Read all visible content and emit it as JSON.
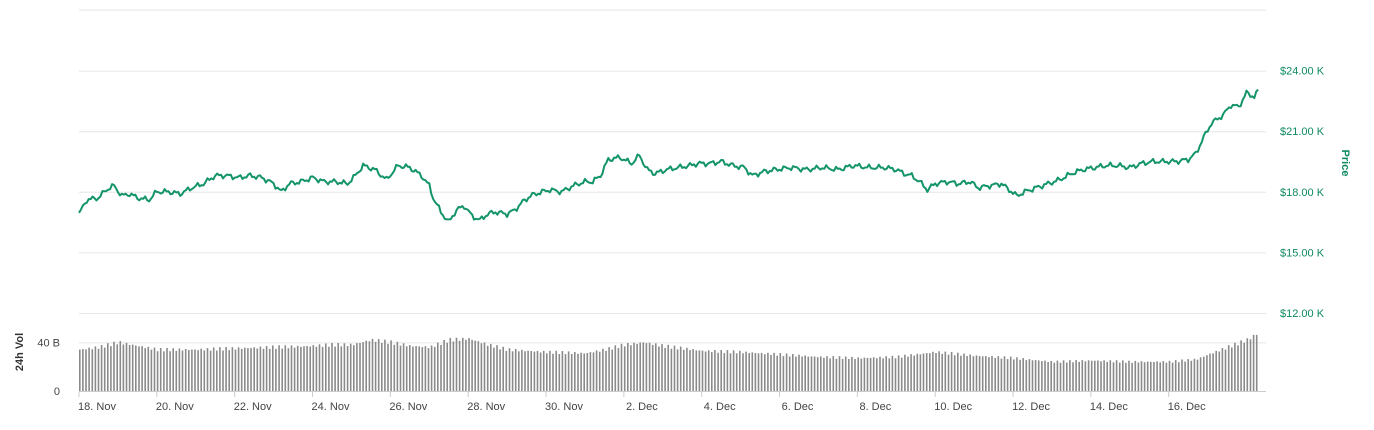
{
  "chart_data": {
    "type": "line",
    "title": "",
    "price_axis": {
      "title": "Price",
      "ticks": [
        {
          "value": 12000,
          "label": "$12.00 K"
        },
        {
          "value": 15000,
          "label": "$15.00 K"
        },
        {
          "value": 18000,
          "label": "$18.00 K"
        },
        {
          "value": 21000,
          "label": "$21.00 K"
        },
        {
          "value": 24000,
          "label": "$24.00 K"
        }
      ],
      "range": [
        12000,
        27000
      ]
    },
    "volume_axis": {
      "title": "24h Vol",
      "ticks": [
        {
          "value": 0,
          "label": "0"
        },
        {
          "value": 40,
          "label": "40 B"
        }
      ],
      "range": [
        0,
        60
      ]
    },
    "x_axis": {
      "range": [
        0,
        30.5
      ],
      "ticks": [
        {
          "day": 0,
          "label": "18. Nov"
        },
        {
          "day": 2,
          "label": "20. Nov"
        },
        {
          "day": 4,
          "label": "22. Nov"
        },
        {
          "day": 6,
          "label": "24. Nov"
        },
        {
          "day": 8,
          "label": "26. Nov"
        },
        {
          "day": 10,
          "label": "28. Nov"
        },
        {
          "day": 12,
          "label": "30. Nov"
        },
        {
          "day": 14,
          "label": "2. Dec"
        },
        {
          "day": 16,
          "label": "4. Dec"
        },
        {
          "day": 18,
          "label": "6. Dec"
        },
        {
          "day": 20,
          "label": "8. Dec"
        },
        {
          "day": 22,
          "label": "10. Dec"
        },
        {
          "day": 24,
          "label": "12. Dec"
        },
        {
          "day": 26,
          "label": "14. Dec"
        },
        {
          "day": 28,
          "label": "16. Dec"
        }
      ]
    },
    "series": [
      {
        "kind": "price",
        "color": "#14946b",
        "points": [
          [
            0,
            16900
          ],
          [
            0.2,
            17600
          ],
          [
            0.5,
            17700
          ],
          [
            0.7,
            18100
          ],
          [
            0.9,
            18300
          ],
          [
            1.1,
            17800
          ],
          [
            1.3,
            17900
          ],
          [
            1.5,
            17700
          ],
          [
            1.8,
            17600
          ],
          [
            2.0,
            18000
          ],
          [
            2.3,
            18000
          ],
          [
            2.6,
            17900
          ],
          [
            2.9,
            18200
          ],
          [
            3.2,
            18400
          ],
          [
            3.5,
            18800
          ],
          [
            3.8,
            18800
          ],
          [
            4.1,
            18700
          ],
          [
            4.4,
            18800
          ],
          [
            4.7,
            18700
          ],
          [
            5.0,
            18400
          ],
          [
            5.2,
            18000
          ],
          [
            5.4,
            18400
          ],
          [
            5.7,
            18500
          ],
          [
            6.0,
            18700
          ],
          [
            6.3,
            18500
          ],
          [
            6.6,
            18500
          ],
          [
            6.9,
            18400
          ],
          [
            7.1,
            18800
          ],
          [
            7.3,
            19300
          ],
          [
            7.6,
            19100
          ],
          [
            7.9,
            18600
          ],
          [
            8.2,
            19300
          ],
          [
            8.5,
            19200
          ],
          [
            8.8,
            18800
          ],
          [
            9.0,
            18300
          ],
          [
            9.1,
            17700
          ],
          [
            9.3,
            17000
          ],
          [
            9.5,
            16500
          ],
          [
            9.7,
            17100
          ],
          [
            9.9,
            17300
          ],
          [
            10.1,
            16800
          ],
          [
            10.3,
            16600
          ],
          [
            10.5,
            16900
          ],
          [
            10.7,
            17000
          ],
          [
            11.0,
            16900
          ],
          [
            11.2,
            17100
          ],
          [
            11.4,
            17500
          ],
          [
            11.6,
            17800
          ],
          [
            11.9,
            18000
          ],
          [
            12.1,
            18100
          ],
          [
            12.4,
            18000
          ],
          [
            12.7,
            18300
          ],
          [
            13.0,
            18500
          ],
          [
            13.2,
            18500
          ],
          [
            13.4,
            18800
          ],
          [
            13.6,
            19600
          ],
          [
            13.9,
            19700
          ],
          [
            14.2,
            19400
          ],
          [
            14.4,
            19800
          ],
          [
            14.6,
            19100
          ],
          [
            14.8,
            18900
          ],
          [
            15.1,
            19100
          ],
          [
            15.4,
            19200
          ],
          [
            15.7,
            19300
          ],
          [
            15.9,
            19400
          ],
          [
            16.2,
            19400
          ],
          [
            16.5,
            19500
          ],
          [
            16.8,
            19300
          ],
          [
            17.1,
            19200
          ],
          [
            17.3,
            18800
          ],
          [
            17.6,
            19000
          ],
          [
            17.9,
            19100
          ],
          [
            18.3,
            19200
          ],
          [
            18.7,
            19100
          ],
          [
            19.1,
            19200
          ],
          [
            19.5,
            19100
          ],
          [
            19.9,
            19300
          ],
          [
            20.3,
            19200
          ],
          [
            20.7,
            19200
          ],
          [
            21.0,
            19100
          ],
          [
            21.2,
            18900
          ],
          [
            21.4,
            18800
          ],
          [
            21.6,
            18500
          ],
          [
            21.8,
            18100
          ],
          [
            22.0,
            18400
          ],
          [
            22.3,
            18500
          ],
          [
            22.6,
            18400
          ],
          [
            22.9,
            18500
          ],
          [
            23.1,
            18200
          ],
          [
            23.4,
            18300
          ],
          [
            23.7,
            18400
          ],
          [
            23.9,
            18100
          ],
          [
            24.1,
            17800
          ],
          [
            24.3,
            18000
          ],
          [
            24.6,
            18200
          ],
          [
            24.9,
            18400
          ],
          [
            25.2,
            18600
          ],
          [
            25.5,
            18900
          ],
          [
            25.8,
            19100
          ],
          [
            26.1,
            19200
          ],
          [
            26.4,
            19300
          ],
          [
            26.7,
            19300
          ],
          [
            27.0,
            19200
          ],
          [
            27.3,
            19400
          ],
          [
            27.6,
            19500
          ],
          [
            27.9,
            19500
          ],
          [
            28.2,
            19500
          ],
          [
            28.5,
            19600
          ],
          [
            28.7,
            19900
          ],
          [
            28.9,
            20700
          ],
          [
            29.1,
            21400
          ],
          [
            29.4,
            21800
          ],
          [
            29.6,
            22300
          ],
          [
            29.8,
            22200
          ],
          [
            30.0,
            22900
          ],
          [
            30.2,
            22700
          ],
          [
            30.3,
            23000
          ]
        ]
      },
      {
        "kind": "volume",
        "color": "#8a8a8a",
        "points": [
          [
            0,
            34
          ],
          [
            0.5,
            36
          ],
          [
            1.0,
            40
          ],
          [
            1.5,
            37
          ],
          [
            2.0,
            34
          ],
          [
            3.0,
            34
          ],
          [
            4.0,
            35
          ],
          [
            5.0,
            36
          ],
          [
            6.0,
            37
          ],
          [
            6.5,
            38
          ],
          [
            7.0,
            38
          ],
          [
            7.5,
            42
          ],
          [
            8.0,
            40
          ],
          [
            8.5,
            37
          ],
          [
            9.0,
            36
          ],
          [
            9.5,
            42
          ],
          [
            10.0,
            43
          ],
          [
            10.5,
            38
          ],
          [
            11.0,
            34
          ],
          [
            12.0,
            32
          ],
          [
            13.0,
            31
          ],
          [
            13.5,
            34
          ],
          [
            14.0,
            38
          ],
          [
            14.5,
            40
          ],
          [
            15.0,
            37
          ],
          [
            15.5,
            35
          ],
          [
            16.0,
            33
          ],
          [
            17.0,
            32
          ],
          [
            18.0,
            30
          ],
          [
            19.0,
            28
          ],
          [
            20.0,
            27
          ],
          [
            21.0,
            28
          ],
          [
            22.0,
            32
          ],
          [
            23.0,
            29
          ],
          [
            24.0,
            27
          ],
          [
            25.0,
            24
          ],
          [
            26.0,
            25
          ],
          [
            27.0,
            24
          ],
          [
            28.0,
            24
          ],
          [
            28.7,
            26
          ],
          [
            29.0,
            30
          ],
          [
            29.5,
            36
          ],
          [
            30.0,
            42
          ],
          [
            30.3,
            48
          ]
        ]
      }
    ],
    "grid": true,
    "legend": "none"
  }
}
